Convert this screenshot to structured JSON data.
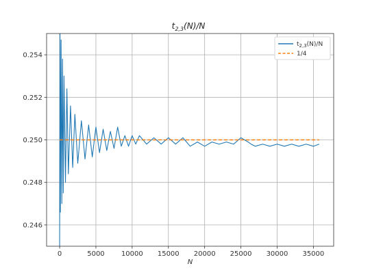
{
  "chart_data": {
    "type": "line",
    "title": "t_{2,3}(N)/N",
    "title_main": "t",
    "title_sub": "2,3",
    "title_rest": "(N)/N",
    "xlabel": "N",
    "ylabel": "",
    "xlim": [
      -1800,
      37800
    ],
    "ylim": [
      0.245,
      0.255
    ],
    "xticks": [
      0,
      5000,
      10000,
      15000,
      20000,
      25000,
      30000,
      35000
    ],
    "xtick_labels": [
      "0",
      "5000",
      "10000",
      "15000",
      "20000",
      "25000",
      "30000",
      "35000"
    ],
    "yticks": [
      0.246,
      0.248,
      0.25,
      0.252,
      0.254
    ],
    "ytick_labels": [
      "0.246",
      "0.248",
      "0.250",
      "0.252",
      "0.254"
    ],
    "grid": true,
    "legend_position": "top-right",
    "series": [
      {
        "name": "t_{2,3}(N)/N",
        "legend_main": "t",
        "legend_sub": "2,3",
        "legend_rest": "(N)/N",
        "color": "#1f77b4",
        "style": "solid",
        "x": [
          0,
          50,
          100,
          200,
          300,
          400,
          500,
          600,
          800,
          1000,
          1200,
          1500,
          1800,
          2100,
          2500,
          3000,
          3500,
          4000,
          4500,
          5000,
          5500,
          6000,
          6500,
          7000,
          7500,
          8000,
          8500,
          9000,
          9500,
          10000,
          10500,
          11000,
          12000,
          13000,
          14000,
          15000,
          16000,
          17000,
          17500,
          18000,
          19000,
          20000,
          21000,
          22000,
          23000,
          24000,
          25000,
          26000,
          26400,
          27000,
          28000,
          29000,
          30000,
          31000,
          32000,
          33000,
          34000,
          35000,
          35800
        ],
        "y": [
          0.245,
          0.255,
          0.2466,
          0.2547,
          0.247,
          0.2538,
          0.2475,
          0.253,
          0.248,
          0.2524,
          0.2484,
          0.2516,
          0.2487,
          0.2512,
          0.2489,
          0.2509,
          0.2491,
          0.2507,
          0.2492,
          0.2506,
          0.2494,
          0.2505,
          0.2495,
          0.2504,
          0.2496,
          0.2506,
          0.2497,
          0.2502,
          0.2497,
          0.2502,
          0.2498,
          0.2502,
          0.2498,
          0.2501,
          0.2498,
          0.2501,
          0.2498,
          0.2501,
          0.2499,
          0.2497,
          0.2499,
          0.2497,
          0.2499,
          0.2498,
          0.2499,
          0.2498,
          0.2501,
          0.2499,
          0.2498,
          0.2497,
          0.2498,
          0.2497,
          0.2498,
          0.2497,
          0.2498,
          0.2497,
          0.2498,
          0.2497,
          0.2498
        ]
      },
      {
        "name": "1/4",
        "color": "#ff7f0e",
        "style": "dashed",
        "x": [
          0,
          35800
        ],
        "y": [
          0.25,
          0.25
        ]
      }
    ]
  }
}
